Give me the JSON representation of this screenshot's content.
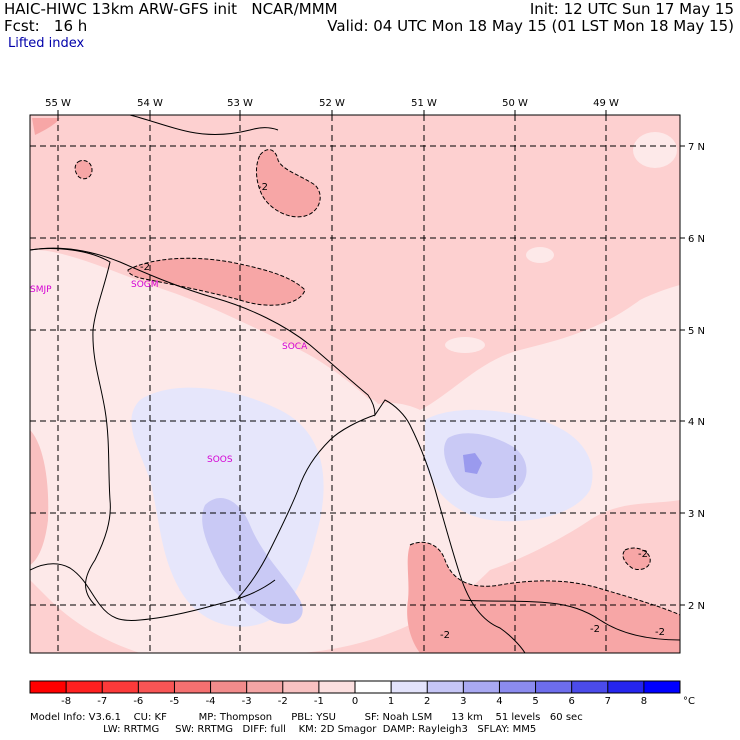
{
  "header": {
    "line1_left": "HAIC-HIWC 13km ARW-GFS init   NCAR/MMM",
    "line1_right": "Init: 12 UTC Sun 17 May 15",
    "line2_left": "Fcst:   16 h",
    "line2_right": "Valid: 04 UTC Mon 18 May 15 (01 LST Mon 18 May 15)",
    "field_name": "Lifted index"
  },
  "map": {
    "lon_labels": [
      "55 W",
      "54 W",
      "53 W",
      "52 W",
      "51 W",
      "50 W",
      "49 W"
    ],
    "lat_labels": [
      "7 N",
      "6 N",
      "5 N",
      "4 N",
      "3 N",
      "2 N"
    ],
    "stations": [
      "SMJP",
      "SOGM",
      "SOCA",
      "SOOS"
    ],
    "contour_labels": [
      "-2",
      "-2",
      "-2",
      "-2",
      "-2",
      "-2"
    ],
    "colors": {
      "light_red": "#fdd0d0",
      "medium_red": "#f7a6a6",
      "near_zero": "#fde9e9",
      "light_blue": "#e6e6fb",
      "medium_blue": "#c9c9f5",
      "dark_blue": "#9a9aee",
      "station_label": "#d400d4"
    }
  },
  "colorbar": {
    "unit": "°C",
    "tick_labels": [
      "-8",
      "-7",
      "-6",
      "-5",
      "-4",
      "-3",
      "-2",
      "-1",
      "0",
      "1",
      "2",
      "3",
      "4",
      "5",
      "6",
      "7",
      "8"
    ],
    "colors": [
      "#ff0000",
      "#ff2020",
      "#fc3a3a",
      "#f85555",
      "#f57070",
      "#f28b8b",
      "#f4a5a5",
      "#f8c2c2",
      "#fce0e0",
      "#ffffff",
      "#e3e3fb",
      "#c6c6f6",
      "#a9a9f2",
      "#8b8bef",
      "#6d6dec",
      "#4b4bea",
      "#2525ee",
      "#0000ff"
    ]
  },
  "footer": {
    "line1": "Model Info: V3.6.1    CU: KF          MP: Thompson      PBL: YSU         SF: Noah LSM      13 km    51 levels   60 sec",
    "line2": "                       LW: RRTMG     SW: RRTMG   DIFF: full    KM: 2D Smagor  DAMP: Rayleigh3   SFLAY: MM5"
  }
}
